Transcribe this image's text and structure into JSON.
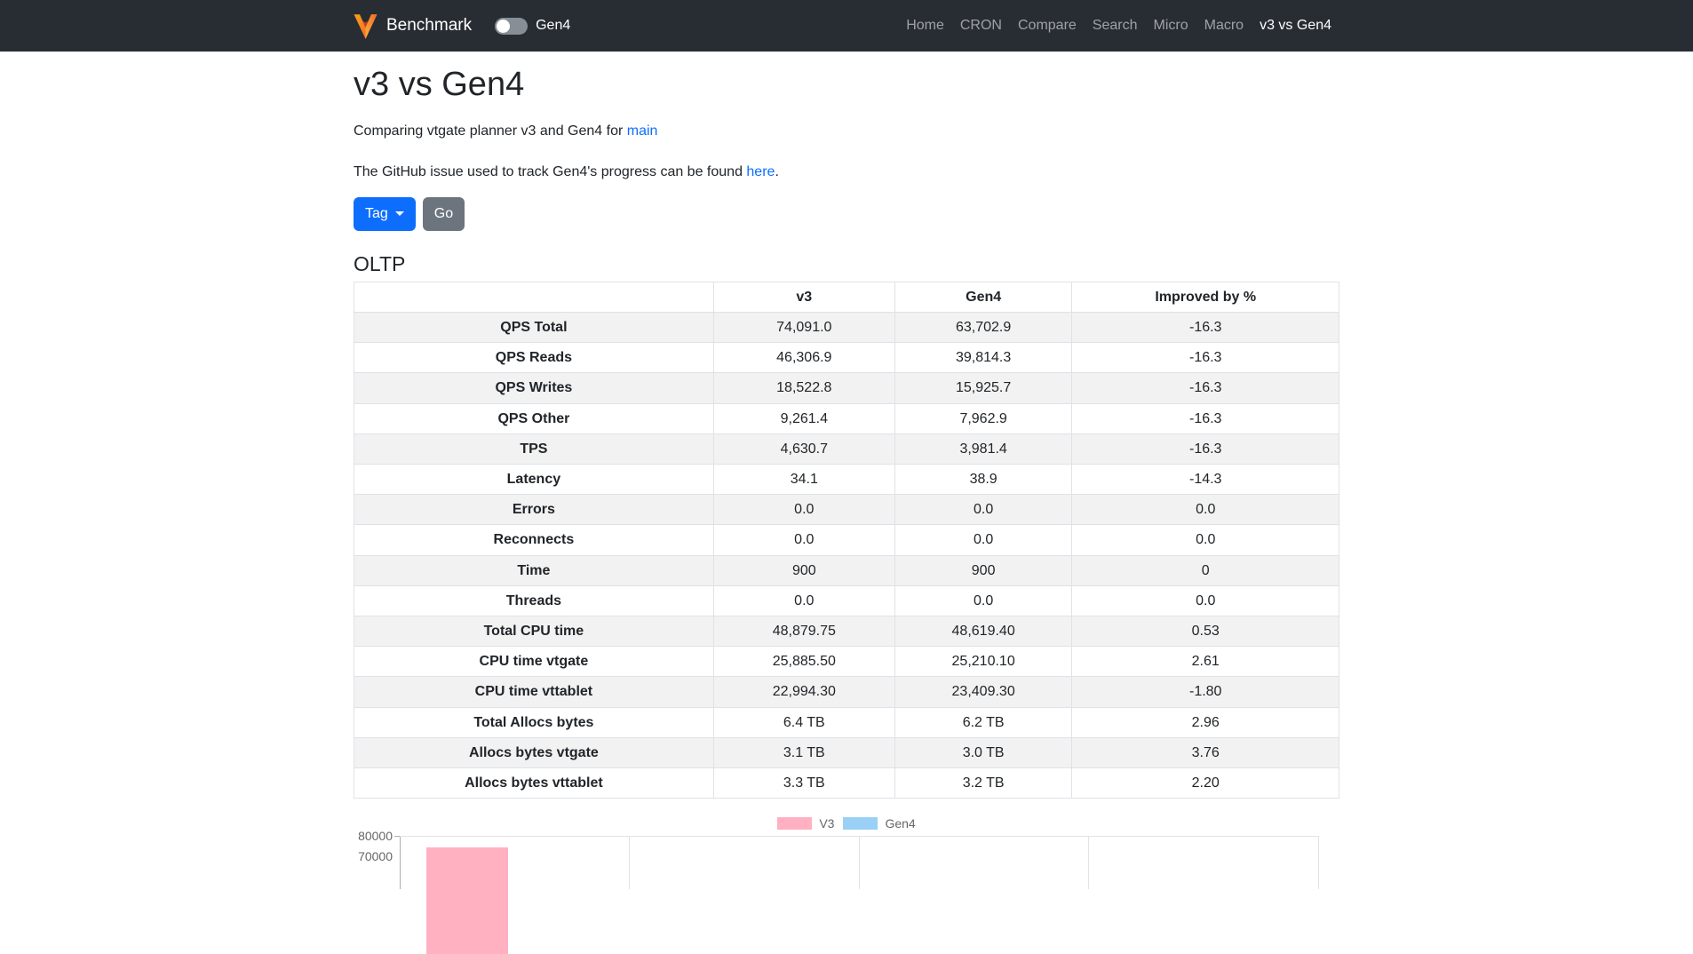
{
  "navbar": {
    "brand": "Benchmark",
    "toggle_label": "Gen4",
    "links": [
      {
        "label": "Home",
        "active": false
      },
      {
        "label": "CRON",
        "active": false
      },
      {
        "label": "Compare",
        "active": false
      },
      {
        "label": "Search",
        "active": false
      },
      {
        "label": "Micro",
        "active": false
      },
      {
        "label": "Macro",
        "active": false
      },
      {
        "label": "v3 vs Gen4",
        "active": true
      }
    ]
  },
  "page": {
    "title": "v3 vs Gen4",
    "subtitle_prefix": "Comparing vtgate planner v3 and Gen4 for ",
    "subtitle_link": "main",
    "issue_prefix": "The GitHub issue used to track Gen4's progress can be found ",
    "issue_link": "here",
    "issue_suffix": ".",
    "tag_label": "Tag",
    "go_label": "Go",
    "section_title": "OLTP"
  },
  "table": {
    "headers": [
      "",
      "v3",
      "Gen4",
      "Improved by %"
    ],
    "rows": [
      {
        "label": "QPS Total",
        "v3": "74,091.0",
        "gen4": "63,702.9",
        "improved": "-16.3"
      },
      {
        "label": "QPS Reads",
        "v3": "46,306.9",
        "gen4": "39,814.3",
        "improved": "-16.3"
      },
      {
        "label": "QPS Writes",
        "v3": "18,522.8",
        "gen4": "15,925.7",
        "improved": "-16.3"
      },
      {
        "label": "QPS Other",
        "v3": "9,261.4",
        "gen4": "7,962.9",
        "improved": "-16.3"
      },
      {
        "label": "TPS",
        "v3": "4,630.7",
        "gen4": "3,981.4",
        "improved": "-16.3"
      },
      {
        "label": "Latency",
        "v3": "34.1",
        "gen4": "38.9",
        "improved": "-14.3"
      },
      {
        "label": "Errors",
        "v3": "0.0",
        "gen4": "0.0",
        "improved": "0.0"
      },
      {
        "label": "Reconnects",
        "v3": "0.0",
        "gen4": "0.0",
        "improved": "0.0"
      },
      {
        "label": "Time",
        "v3": "900",
        "gen4": "900",
        "improved": "0"
      },
      {
        "label": "Threads",
        "v3": "0.0",
        "gen4": "0.0",
        "improved": "0.0"
      },
      {
        "label": "Total CPU time",
        "v3": "48,879.75",
        "gen4": "48,619.40",
        "improved": "0.53"
      },
      {
        "label": "CPU time vtgate",
        "v3": "25,885.50",
        "gen4": "25,210.10",
        "improved": "2.61"
      },
      {
        "label": "CPU time vttablet",
        "v3": "22,994.30",
        "gen4": "23,409.30",
        "improved": "-1.80"
      },
      {
        "label": "Total Allocs bytes",
        "v3": "6.4 TB",
        "gen4": "6.2 TB",
        "improved": "2.96"
      },
      {
        "label": "Allocs bytes vtgate",
        "v3": "3.1 TB",
        "gen4": "3.0 TB",
        "improved": "3.76"
      },
      {
        "label": "Allocs bytes vttablet",
        "v3": "3.3 TB",
        "gen4": "3.2 TB",
        "improved": "2.20"
      }
    ]
  },
  "chart_data": {
    "type": "bar",
    "clipped_at_viewport_bottom": true,
    "legend_position": "top-center",
    "series": [
      {
        "name": "V3",
        "color": "#ffb1c1"
      },
      {
        "name": "Gen4",
        "color": "#9ad0f5"
      }
    ],
    "y_axis": {
      "ticks_visible": [
        "80000",
        "70000"
      ],
      "tick_step": 10000,
      "max_visible": 80000
    },
    "x_gridline_sections_visible": 4,
    "visible_bars": [
      {
        "series": "V3",
        "category_index": 0,
        "value": 74091
      }
    ]
  },
  "colors": {
    "navbar_bg": "#282d33",
    "accent_link": "#0d6efd",
    "primary_button": "#0d6efd",
    "secondary_button": "#6c757d",
    "table_stripe": "#f2f2f2",
    "table_border": "#dee2e6",
    "chart_v3": "#ffb1c1",
    "chart_gen4": "#9ad0f5",
    "logo_orange": "#f26c21"
  }
}
